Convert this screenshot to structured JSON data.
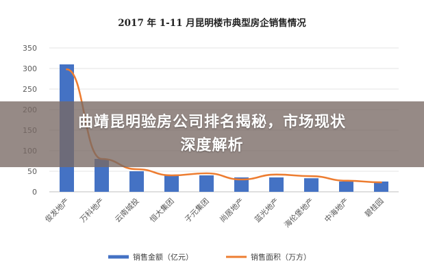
{
  "banner": {
    "line1": "曲靖昆明验房公司排名揭秘，市场现状",
    "line2": "深度解析"
  },
  "chart_data": {
    "type": "bar",
    "title": "2017 年 1-11 月昆明楼市典型房企销售情况",
    "categories": [
      "俊发地产",
      "万科地产",
      "云南城投",
      "恒大集团",
      "子元集团",
      "尚居地产",
      "蓝光地产",
      "海伦堡地产",
      "中海地产",
      "碧桂园"
    ],
    "series": [
      {
        "name": "销售金额（亿元）",
        "kind": "bar",
        "color": "#4472C4",
        "values": [
          310,
          80,
          50,
          40,
          40,
          35,
          35,
          33,
          25,
          25
        ]
      },
      {
        "name": "销售面积（万方）",
        "kind": "line",
        "color": "#ED7D31",
        "values": [
          298,
          80,
          55,
          40,
          45,
          30,
          42,
          38,
          27,
          23
        ]
      }
    ],
    "yticks": [
      "0",
      "50",
      "100",
      "150",
      "200",
      "250",
      "300",
      "350"
    ],
    "ylim": [
      0,
      350
    ],
    "grid": true,
    "legend": "bottom"
  }
}
